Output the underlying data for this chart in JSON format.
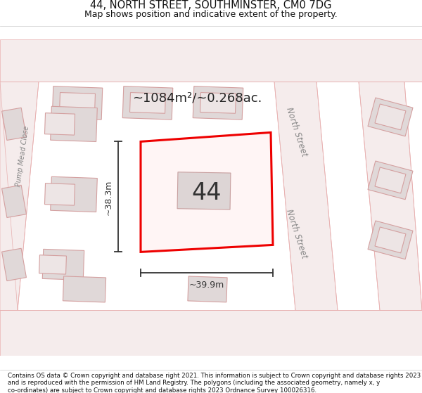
{
  "title_line1": "44, NORTH STREET, SOUTHMINSTER, CM0 7DG",
  "title_line2": "Map shows position and indicative extent of the property.",
  "footer_text": "Contains OS data © Crown copyright and database right 2021. This information is subject to Crown copyright and database rights 2023 and is reproduced with the permission of HM Land Registry. The polygons (including the associated geometry, namely x, y co-ordinates) are subject to Crown copyright and database rights 2023 Ordnance Survey 100026316.",
  "area_label": "~1084m²/~0.268ac.",
  "number_label": "44",
  "dim_width": "~39.9m",
  "dim_height": "~38.3m",
  "street_label_north1": "North Street",
  "street_label_north2": "North Street",
  "street_label_pump": "Pump Mead Close",
  "bg_color": "#ffffff",
  "map_bg": "#f7f0f0",
  "building_fill": "#e0d8d8",
  "building_stroke": "#d4a0a0",
  "road_color": "#e8b0b0",
  "road_fill": "#f5ecec",
  "highlight_fill": "#fff5f5",
  "highlight_stroke": "#ee0000",
  "dim_color": "#333333",
  "label_color": "#888888"
}
